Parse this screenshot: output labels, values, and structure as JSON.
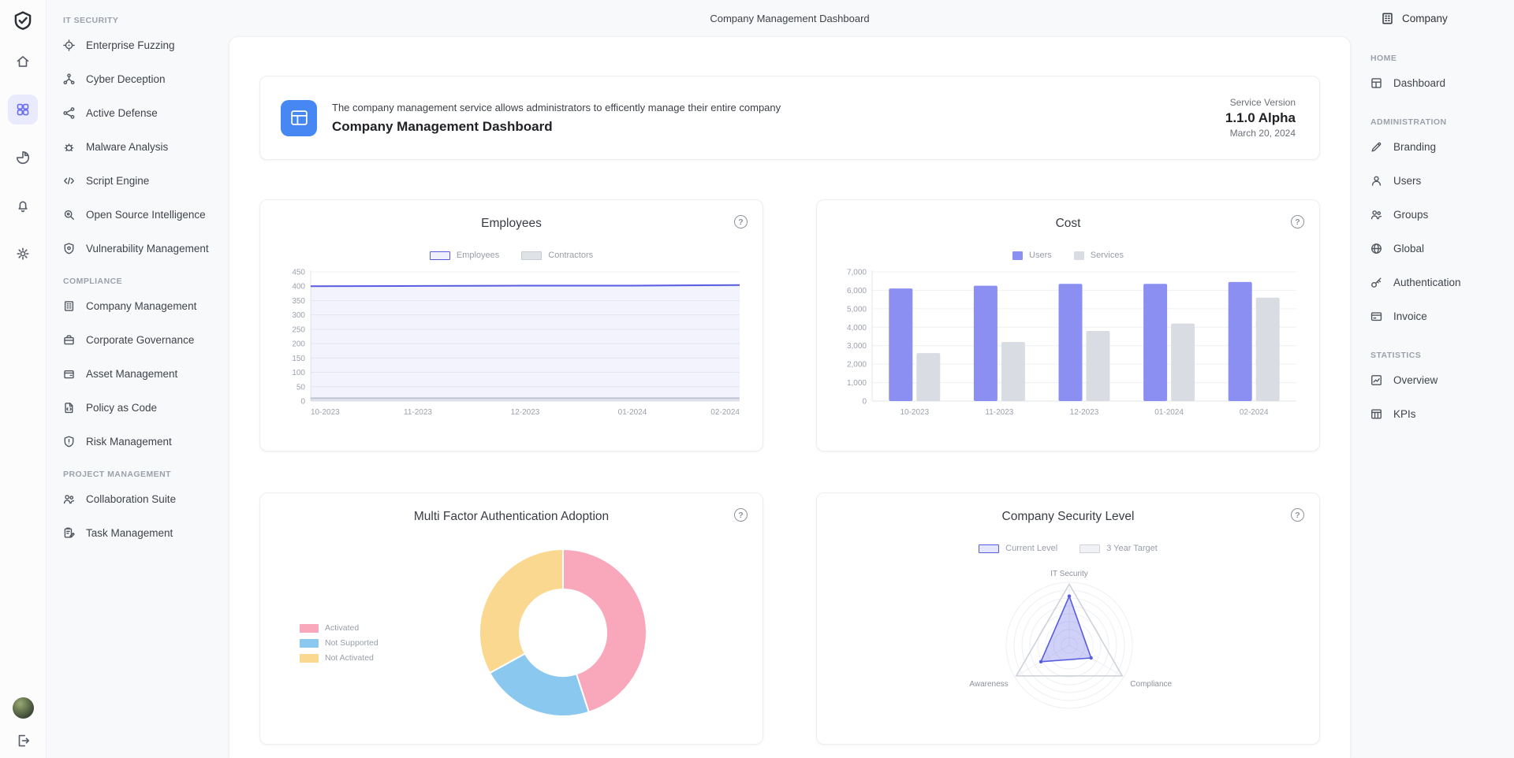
{
  "app": {
    "top_title": "Company Management Dashboard"
  },
  "ui": {
    "help_glyph": "?"
  },
  "rail": {
    "items": [
      {
        "icon": "home",
        "name": "home",
        "active": false
      },
      {
        "icon": "grid",
        "name": "apps-grid",
        "active": true
      },
      {
        "icon": "pie",
        "name": "pie-chart",
        "active": false
      },
      {
        "icon": "bell",
        "name": "notifications",
        "active": false
      },
      {
        "icon": "gear",
        "name": "settings",
        "active": false
      }
    ]
  },
  "sidebar": {
    "sections": [
      {
        "title": "IT SECURITY",
        "items": [
          {
            "label": "Enterprise Fuzzing",
            "icon": "crosshair"
          },
          {
            "label": "Cyber Deception",
            "icon": "network"
          },
          {
            "label": "Active Defense",
            "icon": "share"
          },
          {
            "label": "Malware Analysis",
            "icon": "bug"
          },
          {
            "label": "Script Engine",
            "icon": "code"
          },
          {
            "label": "Open Source Intelligence",
            "icon": "search"
          },
          {
            "label": "Vulnerability Management",
            "icon": "shield-dot"
          }
        ]
      },
      {
        "title": "COMPLIANCE",
        "items": [
          {
            "label": "Company Management",
            "icon": "building"
          },
          {
            "label": "Corporate Governance",
            "icon": "briefcase"
          },
          {
            "label": "Asset Management",
            "icon": "wallet"
          },
          {
            "label": "Policy as Code",
            "icon": "doc-code"
          },
          {
            "label": "Risk Management",
            "icon": "shield-alert"
          }
        ]
      },
      {
        "title": "PROJECT MANAGEMENT",
        "items": [
          {
            "label": "Collaboration Suite",
            "icon": "people"
          },
          {
            "label": "Task Management",
            "icon": "clipboard"
          }
        ]
      }
    ]
  },
  "banner": {
    "description": "The company management service allows administrators to efficently manage their entire company",
    "title": "Company Management Dashboard",
    "service_version_label": "Service Version",
    "version": "1.1.0 Alpha",
    "date": "March 20, 2024",
    "icon_color": "#4787f3"
  },
  "right_sidebar": {
    "company_label": "Company",
    "sections": [
      {
        "title": "HOME",
        "items": [
          {
            "label": "Dashboard",
            "icon": "layout"
          }
        ]
      },
      {
        "title": "ADMINISTRATION",
        "items": [
          {
            "label": "Branding",
            "icon": "pen"
          },
          {
            "label": "Users",
            "icon": "person"
          },
          {
            "label": "Groups",
            "icon": "people"
          },
          {
            "label": "Global",
            "icon": "globe"
          },
          {
            "label": "Authentication",
            "icon": "key"
          },
          {
            "label": "Invoice",
            "icon": "card"
          }
        ]
      },
      {
        "title": "STATISTICS",
        "items": [
          {
            "label": "Overview",
            "icon": "trend"
          },
          {
            "label": "KPIs",
            "icon": "table"
          }
        ]
      }
    ]
  },
  "chart_data": [
    {
      "id": "employees",
      "type": "line",
      "title": "Employees",
      "categories": [
        "10-2023",
        "11-2023",
        "12-2023",
        "01-2024",
        "02-2024"
      ],
      "ylim": [
        0,
        450
      ],
      "ystep": 50,
      "comma": false,
      "grid": true,
      "legend_position": "top",
      "series": [
        {
          "name": "Employees",
          "color": "#575ce0",
          "tint": "#eef0fd",
          "area": "rgba(93,98,227,0.08)",
          "values": [
            400,
            401,
            402,
            402,
            404
          ]
        },
        {
          "name": "Contractors",
          "color": "#c7cbd2",
          "tint": "#dfe2e7",
          "area": "rgba(185,190,198,0.22)",
          "values": [
            10,
            10,
            10,
            10,
            10
          ]
        }
      ]
    },
    {
      "id": "cost",
      "type": "bar",
      "title": "Cost",
      "categories": [
        "10-2023",
        "11-2023",
        "12-2023",
        "01-2024",
        "02-2024"
      ],
      "ylim": [
        0,
        7000
      ],
      "ystep": 1000,
      "comma": true,
      "grid": true,
      "legend_position": "top",
      "series": [
        {
          "name": "Users",
          "color": "#8b8ff2",
          "values": [
            6100,
            6250,
            6350,
            6350,
            6450
          ]
        },
        {
          "name": "Services",
          "color": "#d9dce2",
          "values": [
            2600,
            3200,
            3800,
            4200,
            5600
          ]
        }
      ]
    },
    {
      "id": "mfa",
      "type": "donut",
      "title": "Multi Factor Authentication Adoption",
      "legend_position": "left",
      "slices": [
        {
          "label": "Activated",
          "color": "#f8a8ba",
          "value": 45
        },
        {
          "label": "Not Supported",
          "color": "#8bc8ef",
          "value": 22
        },
        {
          "label": "Not Activated",
          "color": "#fbd88f",
          "value": 33
        }
      ]
    },
    {
      "id": "security-level",
      "type": "radar",
      "title": "Company Security Level",
      "axes": [
        "IT Security",
        "Compliance",
        "Awareness"
      ],
      "max": 100,
      "legend_position": "top",
      "series": [
        {
          "name": "Current Level",
          "color": "#575ce0",
          "tint": "#e4e6fb",
          "fill": "rgba(99,104,235,0.30)",
          "dots": true,
          "values": [
            78,
            40,
            52
          ]
        },
        {
          "name": "3 Year Target",
          "color": "#cfd3d9",
          "tint": "#f1f2f5",
          "fill": "none",
          "dots": false,
          "values": [
            97,
            97,
            97
          ]
        }
      ]
    }
  ]
}
